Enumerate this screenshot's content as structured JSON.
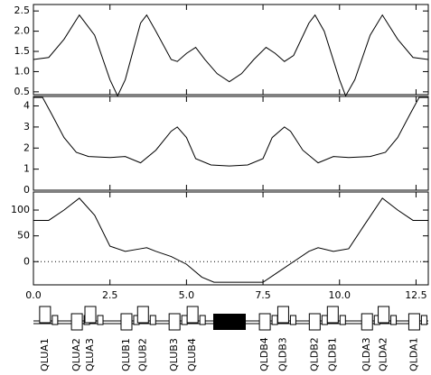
{
  "chart_data": [
    {
      "type": "line",
      "x": [
        0,
        0.5,
        1.0,
        1.5,
        2.0,
        2.5,
        2.75,
        3.0,
        3.5,
        3.7,
        4.0,
        4.5,
        4.7,
        5.0,
        5.3,
        5.6,
        6.0,
        6.4,
        6.8,
        7.2,
        7.6,
        7.9,
        8.2,
        8.5,
        9.0,
        9.2,
        9.5,
        10.0,
        10.2,
        10.5,
        11.0,
        11.4,
        11.9,
        12.4,
        12.9
      ],
      "series": [
        {
          "color": "#000000",
          "values": [
            1.3,
            1.35,
            1.8,
            2.4,
            1.9,
            0.8,
            0.4,
            0.8,
            2.2,
            2.4,
            2.0,
            1.3,
            1.25,
            1.45,
            1.6,
            1.3,
            0.95,
            0.75,
            0.95,
            1.3,
            1.6,
            1.45,
            1.25,
            1.4,
            2.2,
            2.4,
            2.0,
            0.8,
            0.4,
            0.8,
            1.9,
            2.4,
            1.8,
            1.35,
            1.3
          ]
        }
      ],
      "xlim": [
        0,
        12.9
      ],
      "ylim": [
        0.43,
        2.66
      ],
      "yticks": [
        0.5,
        {
          "value": 1,
          "label": "1.0"
        },
        1.5,
        {
          "value": 2,
          "label": "2.0"
        },
        2.5
      ]
    },
    {
      "type": "line",
      "x": [
        0,
        0.3,
        0.6,
        1.0,
        1.4,
        1.8,
        2.5,
        3.0,
        3.5,
        4.0,
        4.5,
        4.7,
        5.0,
        5.3,
        5.8,
        6.4,
        7.0,
        7.5,
        7.8,
        8.2,
        8.4,
        8.8,
        9.3,
        9.8,
        10.3,
        11.0,
        11.5,
        11.9,
        12.3,
        12.6,
        12.9
      ],
      "series": [
        {
          "color": "#000000",
          "values": [
            4.4,
            4.4,
            3.6,
            2.5,
            1.8,
            1.6,
            1.55,
            1.6,
            1.3,
            1.9,
            2.8,
            3.0,
            2.5,
            1.5,
            1.2,
            1.15,
            1.2,
            1.5,
            2.5,
            3.0,
            2.8,
            1.9,
            1.3,
            1.6,
            1.55,
            1.6,
            1.8,
            2.5,
            3.6,
            4.4,
            4.4
          ]
        }
      ],
      "xlim": [
        0,
        12.9
      ],
      "ylim": [
        0,
        4.45
      ],
      "yticks": [
        0,
        1,
        2,
        3,
        4
      ]
    },
    {
      "type": "line",
      "x": [
        0,
        0.5,
        1.0,
        1.5,
        2.0,
        2.5,
        3.0,
        3.5,
        3.7,
        4.0,
        4.5,
        5.0,
        5.5,
        5.9,
        6.4,
        7.5,
        8.0,
        8.5,
        9.0,
        9.3,
        9.8,
        10.3,
        10.8,
        11.4,
        11.9,
        12.4,
        12.9
      ],
      "series": [
        {
          "color": "#000000",
          "values": [
            80,
            80,
            100,
            123,
            90,
            30,
            20,
            25,
            27,
            20,
            10,
            -5,
            -30,
            -40,
            -40,
            -40,
            -20,
            0,
            20,
            27,
            20,
            25,
            70,
            123,
            100,
            80,
            80
          ]
        }
      ],
      "xlim": [
        0,
        12.9
      ],
      "ylim": [
        -45,
        135
      ],
      "yticks": [
        0,
        50,
        100
      ],
      "zero_line": true,
      "xticks": [
        {
          "value": 0,
          "label": "0.0"
        },
        2.5,
        {
          "value": 5,
          "label": "5.0"
        },
        7.5,
        {
          "value": 10,
          "label": "10.0"
        },
        12.5
      ]
    }
  ],
  "lattice": {
    "elements": [
      {
        "label": "QLUA1",
        "s": 0.38
      },
      {
        "label": "QLUA2",
        "s": 1.42
      },
      {
        "label": "QLUA3",
        "s": 1.86
      },
      {
        "label": "QLUB1",
        "s": 3.04
      },
      {
        "label": "QLUB2",
        "s": 3.58
      },
      {
        "label": "QLUB3",
        "s": 4.61
      },
      {
        "label": "QLUB4",
        "s": 5.2
      },
      {
        "label": "QLDB4",
        "s": 7.56
      },
      {
        "label": "QLDB3",
        "s": 8.16
      },
      {
        "label": "QLDB2",
        "s": 9.19
      },
      {
        "label": "QLDB1",
        "s": 9.78
      },
      {
        "label": "QLDA3",
        "s": 10.9
      },
      {
        "label": "QLDA2",
        "s": 11.44
      },
      {
        "label": "QLDA1",
        "s": 12.44
      }
    ]
  }
}
